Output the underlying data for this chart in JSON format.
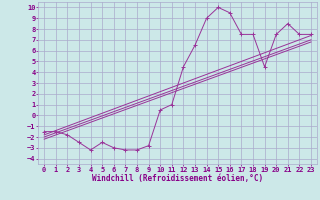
{
  "xlabel": "Windchill (Refroidissement éolien,°C)",
  "background_color": "#cce8e8",
  "grid_color": "#aaaacc",
  "line_color": "#993399",
  "xlim": [
    -0.5,
    23.5
  ],
  "ylim": [
    -4.5,
    10.5
  ],
  "xticks": [
    0,
    1,
    2,
    3,
    4,
    5,
    6,
    7,
    8,
    9,
    10,
    11,
    12,
    13,
    14,
    15,
    16,
    17,
    18,
    19,
    20,
    21,
    22,
    23
  ],
  "yticks": [
    -4,
    -3,
    -2,
    -1,
    0,
    1,
    2,
    3,
    4,
    5,
    6,
    7,
    8,
    9,
    10
  ],
  "main_x": [
    0,
    1,
    2,
    3,
    4,
    5,
    6,
    7,
    8,
    9,
    10,
    11,
    12,
    13,
    14,
    15,
    16,
    17,
    18,
    19,
    20,
    21,
    22,
    23
  ],
  "main_y": [
    -1.5,
    -1.5,
    -1.8,
    -2.5,
    -3.2,
    -2.5,
    -3.0,
    -3.2,
    -3.2,
    -2.8,
    0.5,
    1.0,
    4.5,
    6.5,
    9.0,
    10.0,
    9.5,
    7.5,
    7.5,
    4.5,
    7.5,
    8.5,
    7.5,
    7.5
  ],
  "line1_x": [
    0,
    23
  ],
  "line1_y": [
    -1.8,
    7.4
  ],
  "line2_x": [
    0,
    23
  ],
  "line2_y": [
    -2.2,
    6.8
  ],
  "line3_x": [
    0,
    23
  ],
  "line3_y": [
    -2.0,
    7.0
  ],
  "tick_color": "#880088",
  "xlabel_color": "#880088",
  "xlabel_fontsize": 5.5,
  "tick_fontsize": 5.0
}
